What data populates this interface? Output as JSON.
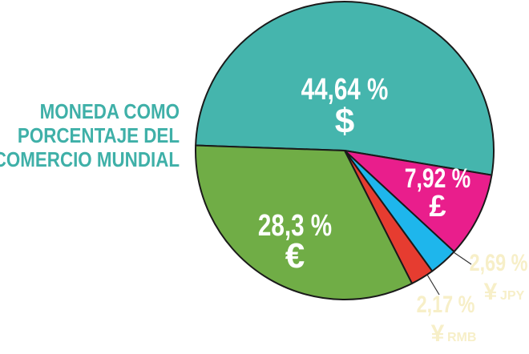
{
  "chart_data": {
    "type": "pie",
    "title_lines": [
      "MONEDA COMO",
      "PORCENTAJE DEL",
      "COMERCIO MUNDIAL"
    ],
    "slices": [
      {
        "label": "44,64 %",
        "value": 44.64,
        "symbol": "$",
        "color": "#45b5ad"
      },
      {
        "label": "7,92 %",
        "value": 7.92,
        "symbol": "£",
        "color": "#e91e8c"
      },
      {
        "label": "2,69 %",
        "value": 2.69,
        "symbol": "¥",
        "symbol_sub": "JPY",
        "color": "#1eb6ec"
      },
      {
        "label": "2,17 %",
        "value": 2.17,
        "symbol": "¥",
        "symbol_sub": "RMB",
        "color": "#e63c30"
      },
      {
        "label": "28,3 %",
        "value": 28.3,
        "symbol": "€",
        "color": "#70ad46"
      }
    ],
    "outside_label_color": "#f7efc8"
  }
}
